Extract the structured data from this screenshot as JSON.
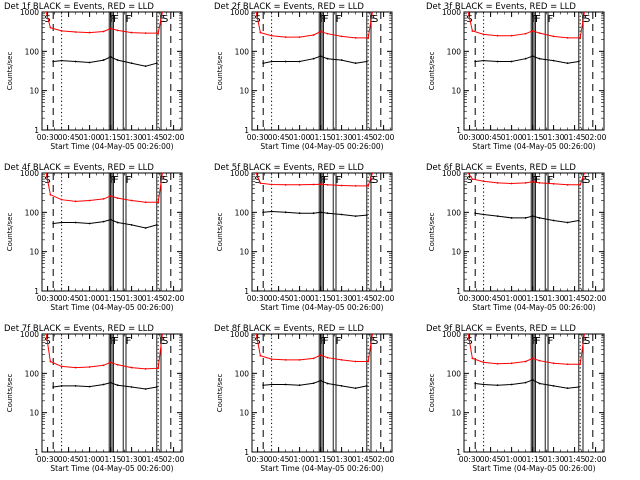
{
  "chart_data": [
    {
      "type": "line",
      "title": "Det 1f BLACK = Events, RED = LLD",
      "ylabel": "Counts/sec",
      "xlabel": "Start Time (04-May-05 00:26:00)",
      "yscale": "log",
      "ylim": [
        1,
        1000
      ],
      "xlim": [
        "00:26:00",
        "02:06:00"
      ],
      "x_ticks": [
        "00:30",
        "00:45",
        "01:00",
        "01:15",
        "01:30",
        "01:45",
        "02:00"
      ],
      "y_ticks": [
        "1",
        "10",
        "100",
        "1000"
      ],
      "grid": false,
      "flag_labels": [
        "S",
        "F",
        "F",
        "F",
        "E",
        "S"
      ],
      "series": [
        {
          "color": "#ff0000",
          "x": [
            "00:29",
            "00:32",
            "00:40",
            "00:50",
            "01:00",
            "01:10",
            "01:15",
            "01:20",
            "01:30",
            "01:40",
            "01:49",
            "01:52"
          ],
          "y": [
            1000,
            400,
            330,
            310,
            300,
            320,
            380,
            340,
            300,
            290,
            290,
            1000
          ]
        },
        {
          "color": "#000000",
          "x": [
            "00:34",
            "00:40",
            "00:50",
            "01:00",
            "01:10",
            "01:15",
            "01:20",
            "01:30",
            "01:40",
            "01:48"
          ],
          "y": [
            55,
            58,
            55,
            52,
            60,
            72,
            60,
            50,
            42,
            50
          ]
        }
      ]
    },
    {
      "type": "line",
      "title": "Det 2f BLACK = Events, RED = LLD",
      "ylabel": "Counts/sec",
      "xlabel": "Start Time (04-May-05 00:26:00)",
      "yscale": "log",
      "ylim": [
        1,
        1000
      ],
      "xlim": [
        "00:26:00",
        "02:06:00"
      ],
      "x_ticks": [
        "00:30",
        "00:45",
        "01:00",
        "01:15",
        "01:30",
        "01:45",
        "02:00"
      ],
      "y_ticks": [
        "1",
        "10",
        "100",
        "1000"
      ],
      "grid": false,
      "flag_labels": [
        "S",
        "F",
        "F",
        "F",
        "E",
        "S"
      ],
      "series": [
        {
          "color": "#ff0000",
          "x": [
            "00:29",
            "00:32",
            "00:40",
            "00:50",
            "01:00",
            "01:10",
            "01:15",
            "01:20",
            "01:30",
            "01:40",
            "01:49",
            "01:52"
          ],
          "y": [
            1000,
            300,
            250,
            230,
            230,
            260,
            320,
            280,
            240,
            220,
            220,
            1000
          ]
        },
        {
          "color": "#000000",
          "x": [
            "00:34",
            "00:40",
            "00:50",
            "01:00",
            "01:10",
            "01:15",
            "01:20",
            "01:30",
            "01:40",
            "01:48"
          ],
          "y": [
            50,
            55,
            55,
            55,
            65,
            75,
            65,
            60,
            50,
            55
          ]
        }
      ]
    },
    {
      "type": "line",
      "title": "Det 3f BLACK = Events, RED = LLD",
      "ylabel": "Counts/sec",
      "xlabel": "Start Time (04-May-05 00:26:00)",
      "yscale": "log",
      "ylim": [
        1,
        1000
      ],
      "xlim": [
        "00:26:00",
        "02:06:00"
      ],
      "x_ticks": [
        "00:30",
        "00:45",
        "01:00",
        "01:15",
        "01:30",
        "01:45",
        "02:00"
      ],
      "y_ticks": [
        "1",
        "10",
        "100",
        "1000"
      ],
      "grid": false,
      "flag_labels": [
        "S",
        "F",
        "F",
        "F",
        "E",
        "S"
      ],
      "series": [
        {
          "color": "#ff0000",
          "x": [
            "00:29",
            "00:32",
            "00:40",
            "00:50",
            "01:00",
            "01:10",
            "01:15",
            "01:20",
            "01:30",
            "01:40",
            "01:49",
            "01:52"
          ],
          "y": [
            1000,
            330,
            270,
            250,
            250,
            280,
            330,
            290,
            240,
            220,
            220,
            1000
          ]
        },
        {
          "color": "#000000",
          "x": [
            "00:34",
            "00:40",
            "00:50",
            "01:00",
            "01:10",
            "01:15",
            "01:20",
            "01:30",
            "01:40",
            "01:48"
          ],
          "y": [
            55,
            58,
            55,
            55,
            65,
            75,
            65,
            58,
            50,
            55
          ]
        }
      ]
    },
    {
      "type": "line",
      "title": "Det 4f BLACK = Events, RED = LLD",
      "ylabel": "Counts/sec",
      "xlabel": "Start Time (04-May-05 00:26:00)",
      "yscale": "log",
      "ylim": [
        1,
        1000
      ],
      "xlim": [
        "00:26:00",
        "02:06:00"
      ],
      "x_ticks": [
        "00:30",
        "00:45",
        "01:00",
        "01:15",
        "01:30",
        "01:45",
        "02:00"
      ],
      "y_ticks": [
        "1",
        "10",
        "100",
        "1000"
      ],
      "grid": false,
      "flag_labels": [
        "S",
        "F",
        "F",
        "F",
        "E",
        "S"
      ],
      "series": [
        {
          "color": "#ff0000",
          "x": [
            "00:29",
            "00:32",
            "00:40",
            "00:50",
            "01:00",
            "01:10",
            "01:15",
            "01:20",
            "01:30",
            "01:40",
            "01:49",
            "01:52"
          ],
          "y": [
            1000,
            280,
            210,
            190,
            200,
            220,
            260,
            230,
            200,
            180,
            180,
            1000
          ]
        },
        {
          "color": "#000000",
          "x": [
            "00:34",
            "00:40",
            "00:50",
            "01:00",
            "01:10",
            "01:15",
            "01:20",
            "01:30",
            "01:40",
            "01:48"
          ],
          "y": [
            52,
            55,
            55,
            52,
            58,
            65,
            55,
            48,
            40,
            48
          ]
        }
      ]
    },
    {
      "type": "line",
      "title": "Det 5f BLACK = Events, RED = LLD",
      "ylabel": "Counts/sec",
      "xlabel": "Start Time (04-May-05 00:26:00)",
      "yscale": "log",
      "ylim": [
        1,
        1000
      ],
      "xlim": [
        "00:26:00",
        "02:06:00"
      ],
      "x_ticks": [
        "00:30",
        "00:45",
        "01:00",
        "01:15",
        "01:30",
        "01:45",
        "02:00"
      ],
      "y_ticks": [
        "1",
        "10",
        "100",
        "1000"
      ],
      "grid": false,
      "flag_labels": [
        "S",
        "F",
        "F",
        "F",
        "E",
        "S"
      ],
      "series": [
        {
          "color": "#ff0000",
          "x": [
            "00:29",
            "00:32",
            "00:40",
            "00:50",
            "01:00",
            "01:10",
            "01:15",
            "01:20",
            "01:30",
            "01:40",
            "01:49",
            "01:52"
          ],
          "y": [
            1000,
            550,
            510,
            500,
            500,
            510,
            520,
            500,
            480,
            470,
            470,
            1000
          ]
        },
        {
          "color": "#000000",
          "x": [
            "00:34",
            "00:40",
            "00:50",
            "01:00",
            "01:10",
            "01:15",
            "01:20",
            "01:30",
            "01:40",
            "01:48"
          ],
          "y": [
            100,
            105,
            100,
            95,
            95,
            100,
            95,
            88,
            80,
            85
          ]
        }
      ]
    },
    {
      "type": "line",
      "title": "Det 6f BLACK = Events, RED = LLD",
      "ylabel": "Counts/sec",
      "xlabel": "Start Time (04-May-05 00:26:00)",
      "yscale": "log",
      "ylim": [
        1,
        1000
      ],
      "xlim": [
        "00:26:00",
        "02:06:00"
      ],
      "x_ticks": [
        "00:30",
        "00:45",
        "01:00",
        "01:15",
        "01:30",
        "01:45",
        "02:00"
      ],
      "y_ticks": [
        "1",
        "10",
        "100",
        "1000"
      ],
      "grid": false,
      "flag_labels": [
        "S",
        "F",
        "F",
        "F",
        "E",
        "S"
      ],
      "series": [
        {
          "color": "#ff0000",
          "x": [
            "00:29",
            "00:32",
            "00:40",
            "00:50",
            "01:00",
            "01:10",
            "01:15",
            "01:20",
            "01:30",
            "01:40",
            "01:49",
            "01:52"
          ],
          "y": [
            1000,
            700,
            620,
            560,
            540,
            560,
            600,
            560,
            530,
            500,
            500,
            1000
          ]
        },
        {
          "color": "#000000",
          "x": [
            "00:34",
            "00:40",
            "00:50",
            "01:00",
            "01:10",
            "01:15",
            "01:20",
            "01:30",
            "01:40",
            "01:48"
          ],
          "y": [
            95,
            88,
            80,
            72,
            72,
            80,
            72,
            62,
            55,
            62
          ]
        }
      ]
    },
    {
      "type": "line",
      "title": "Det 7f BLACK = Events, RED = LLD",
      "ylabel": "Counts/sec",
      "xlabel": "Start Time (04-May-05 00:26:00)",
      "yscale": "log",
      "ylim": [
        1,
        1000
      ],
      "xlim": [
        "00:26:00",
        "02:06:00"
      ],
      "x_ticks": [
        "00:30",
        "00:45",
        "01:00",
        "01:15",
        "01:30",
        "01:45",
        "02:00"
      ],
      "y_ticks": [
        "1",
        "10",
        "100",
        "1000"
      ],
      "grid": false,
      "flag_labels": [
        "S",
        "F",
        "F",
        "F",
        "E",
        "S"
      ],
      "series": [
        {
          "color": "#ff0000",
          "x": [
            "00:29",
            "00:32",
            "00:40",
            "00:50",
            "01:00",
            "01:10",
            "01:15",
            "01:20",
            "01:30",
            "01:40",
            "01:49",
            "01:52"
          ],
          "y": [
            1000,
            200,
            150,
            140,
            145,
            160,
            190,
            165,
            140,
            130,
            135,
            1000
          ]
        },
        {
          "color": "#000000",
          "x": [
            "00:34",
            "00:40",
            "00:50",
            "01:00",
            "01:10",
            "01:15",
            "01:20",
            "01:30",
            "01:40",
            "01:48"
          ],
          "y": [
            45,
            48,
            48,
            46,
            52,
            58,
            50,
            45,
            40,
            45
          ]
        }
      ]
    },
    {
      "type": "line",
      "title": "Det 8f BLACK = Events, RED = LLD",
      "ylabel": "Counts/sec",
      "xlabel": "Start Time (04-May-05 00:26:00)",
      "yscale": "log",
      "ylim": [
        1,
        1000
      ],
      "xlim": [
        "00:26:00",
        "02:06:00"
      ],
      "x_ticks": [
        "00:30",
        "00:45",
        "01:00",
        "01:15",
        "01:30",
        "01:45",
        "02:00"
      ],
      "y_ticks": [
        "1",
        "10",
        "100",
        "1000"
      ],
      "grid": false,
      "flag_labels": [
        "S",
        "F",
        "F",
        "F",
        "E",
        "S"
      ],
      "series": [
        {
          "color": "#ff0000",
          "x": [
            "00:29",
            "00:32",
            "00:40",
            "00:50",
            "01:00",
            "01:10",
            "01:15",
            "01:20",
            "01:30",
            "01:40",
            "01:49",
            "01:52"
          ],
          "y": [
            1000,
            280,
            230,
            220,
            220,
            240,
            290,
            250,
            220,
            200,
            200,
            1000
          ]
        },
        {
          "color": "#000000",
          "x": [
            "00:34",
            "00:40",
            "00:50",
            "01:00",
            "01:10",
            "01:15",
            "01:20",
            "01:30",
            "01:40",
            "01:48"
          ],
          "y": [
            50,
            52,
            52,
            50,
            56,
            65,
            55,
            48,
            42,
            48
          ]
        }
      ]
    },
    {
      "type": "line",
      "title": "Det 9f BLACK = Events, RED = LLD",
      "ylabel": "Counts/sec",
      "xlabel": "Start Time (04-May-05 00:26:00)",
      "yscale": "log",
      "ylim": [
        1,
        1000
      ],
      "xlim": [
        "00:26:00",
        "02:06:00"
      ],
      "x_ticks": [
        "00:30",
        "00:45",
        "01:00",
        "01:15",
        "01:30",
        "01:45",
        "02:00"
      ],
      "y_ticks": [
        "1",
        "10",
        "100",
        "1000"
      ],
      "grid": false,
      "flag_labels": [
        "S",
        "F",
        "F",
        "F",
        "E",
        "S"
      ],
      "series": [
        {
          "color": "#ff0000",
          "x": [
            "00:29",
            "00:32",
            "00:40",
            "00:50",
            "01:00",
            "01:10",
            "01:15",
            "01:20",
            "01:30",
            "01:40",
            "01:49",
            "01:52"
          ],
          "y": [
            1000,
            240,
            190,
            175,
            180,
            200,
            240,
            210,
            180,
            170,
            170,
            1000
          ]
        },
        {
          "color": "#000000",
          "x": [
            "00:34",
            "00:40",
            "00:50",
            "01:00",
            "01:10",
            "01:15",
            "01:20",
            "01:30",
            "01:40",
            "01:48"
          ],
          "y": [
            55,
            52,
            50,
            52,
            58,
            68,
            55,
            48,
            42,
            45
          ]
        }
      ]
    }
  ],
  "markers": {
    "dashed": [
      "00:34",
      "01:58"
    ],
    "dotted": [
      "00:40",
      "01:49"
    ],
    "solid": [
      "01:14",
      "01:15",
      "01:16",
      "01:17",
      "01:24",
      "01:26",
      "01:48",
      "01:51"
    ],
    "flag_times": [
      "00:27",
      "01:14",
      "01:16",
      "01:25",
      "01:49",
      "01:51"
    ]
  }
}
